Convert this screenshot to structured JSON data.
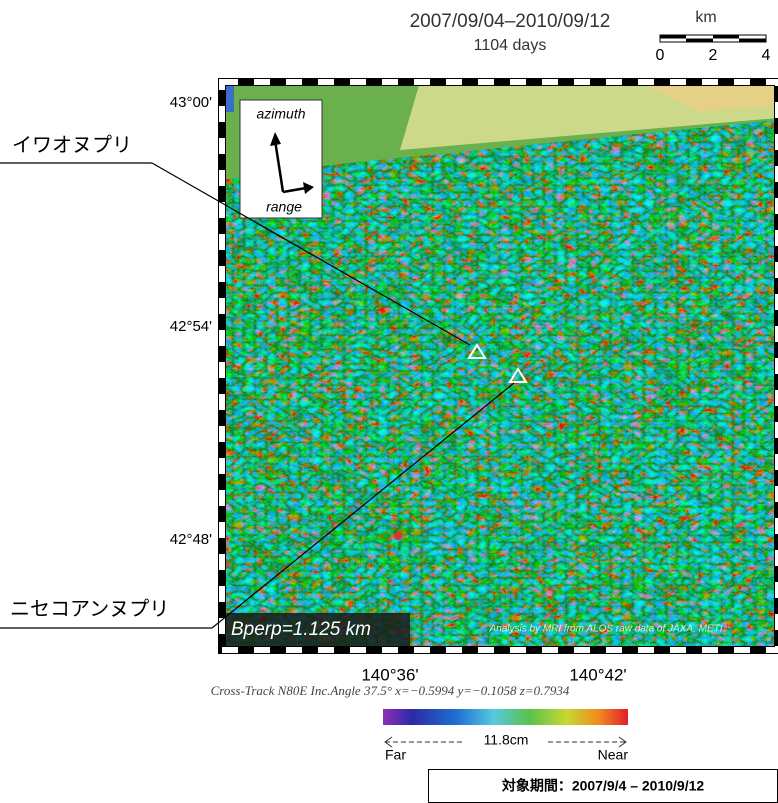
{
  "header": {
    "date_range": "2007/09/04–2010/09/12",
    "days": "1104 days"
  },
  "scale_bar": {
    "unit": "km",
    "ticks": [
      "0",
      "2",
      "4"
    ]
  },
  "map": {
    "lat_labels": [
      "43°00'",
      "42°54'",
      "42°48'"
    ],
    "lon_labels": [
      "140°36'",
      "140°42'"
    ],
    "azimuth": "azimuth",
    "range": "range",
    "bperp": "Bperp=1.125 km",
    "credit": "Analysis by MRI from ALOS raw data of JAXA, METI"
  },
  "volcanoes": [
    {
      "label": "イワオヌプリ"
    },
    {
      "label": "ニセコアンヌプリ"
    }
  ],
  "footer": {
    "geometry": "Cross-Track N80E  Inc.Angle 37.5°  x=−0.5994  y=−0.1058  z=0.7934",
    "colorbar_span": "11.8cm",
    "far": "Far",
    "near": "Near",
    "period": "対象期間：2007/9/4 – 2010/9/12"
  }
}
